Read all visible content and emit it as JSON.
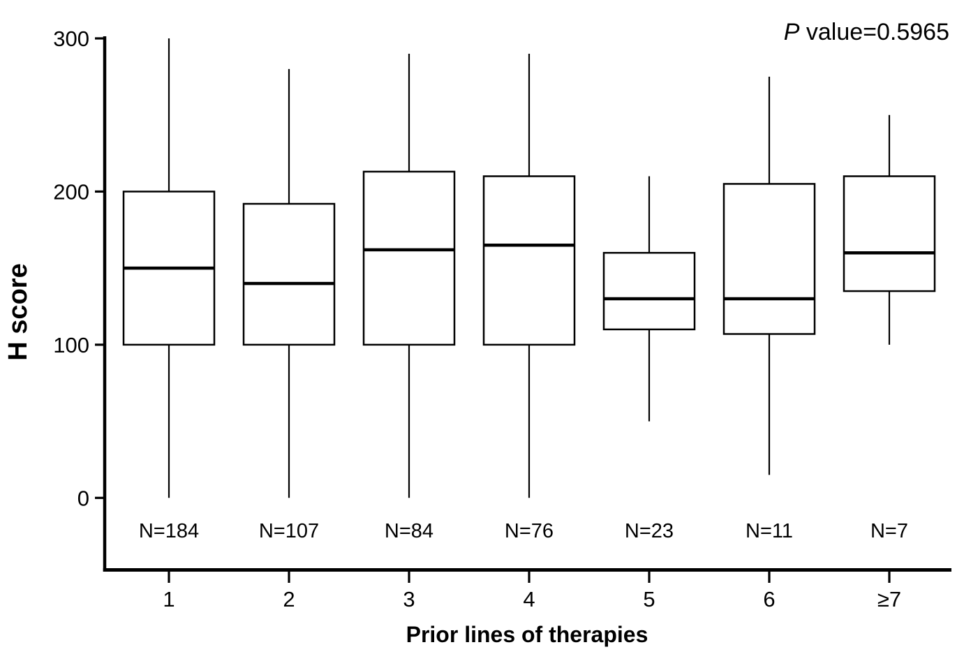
{
  "figure": {
    "background": "#ffffff"
  },
  "annotation": {
    "italic_part": "P",
    "text_part": " value=0.5965"
  },
  "chart_data": {
    "type": "boxplot",
    "title": "",
    "xlabel": "Prior lines of therapies",
    "ylabel": "H score",
    "ylim": [
      0,
      300
    ],
    "yticks": [
      0,
      100,
      200,
      300
    ],
    "grid": false,
    "legend": "none",
    "annotation": "P value=0.5965",
    "p_value": 0.5965,
    "categories": [
      "1",
      "2",
      "3",
      "4",
      "5",
      "6",
      "≥7"
    ],
    "n_labels": [
      "N=184",
      "N=107",
      "N=84",
      "N=76",
      "N=23",
      "N=11",
      "N=7"
    ],
    "boxes": [
      {
        "category": "1",
        "n": 184,
        "whisker_low": 0,
        "q1": 100,
        "median": 150,
        "q3": 200,
        "whisker_high": 300
      },
      {
        "category": "2",
        "n": 107,
        "whisker_low": 0,
        "q1": 100,
        "median": 140,
        "q3": 192,
        "whisker_high": 280
      },
      {
        "category": "3",
        "n": 84,
        "whisker_low": 0,
        "q1": 100,
        "median": 162,
        "q3": 213,
        "whisker_high": 290
      },
      {
        "category": "4",
        "n": 76,
        "whisker_low": 0,
        "q1": 100,
        "median": 165,
        "q3": 210,
        "whisker_high": 290
      },
      {
        "category": "5",
        "n": 23,
        "whisker_low": 50,
        "q1": 110,
        "median": 130,
        "q3": 160,
        "whisker_high": 210
      },
      {
        "category": "6",
        "n": 11,
        "whisker_low": 15,
        "q1": 107,
        "median": 130,
        "q3": 205,
        "whisker_high": 275
      },
      {
        "category": "≥7",
        "n": 7,
        "whisker_low": 100,
        "q1": 135,
        "median": 160,
        "q3": 210,
        "whisker_high": 250
      }
    ],
    "colors": {
      "stroke": "#000000",
      "box_fill": "#ffffff",
      "background": "#ffffff"
    }
  }
}
